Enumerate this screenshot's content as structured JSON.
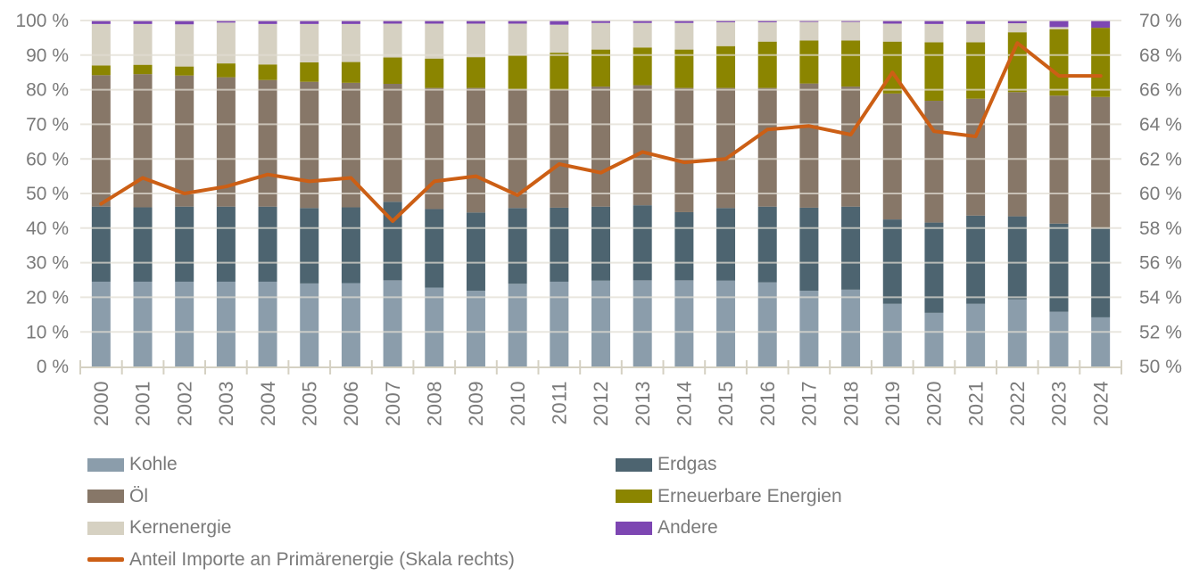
{
  "chart_data": {
    "type": "combo-stacked-bar-line",
    "title": "",
    "stack_unit": "%",
    "grid": true,
    "categories": [
      2000,
      2001,
      2002,
      2003,
      2004,
      2005,
      2006,
      2007,
      2008,
      2009,
      2010,
      2011,
      2012,
      2013,
      2014,
      2015,
      2016,
      2017,
      2018,
      2019,
      2020,
      2021,
      2022,
      2023,
      2024
    ],
    "series": [
      {
        "name": "Kohle",
        "color": "#8b9dab",
        "values": [
          24.5,
          24.5,
          24.5,
          24.5,
          24.5,
          24.0,
          24.1,
          24.9,
          22.8,
          21.9,
          23.9,
          24.5,
          24.8,
          24.9,
          24.9,
          24.8,
          24.3,
          21.9,
          22.2,
          18.1,
          15.5,
          18.1,
          19.4,
          15.8,
          14.2
        ]
      },
      {
        "name": "Erdgas",
        "color": "#4d6470",
        "values": [
          21.7,
          21.5,
          21.7,
          21.7,
          21.7,
          21.8,
          21.9,
          22.7,
          22.7,
          22.6,
          21.9,
          21.4,
          21.4,
          21.7,
          19.7,
          21.0,
          21.9,
          24.0,
          24.0,
          24.4,
          26.1,
          25.5,
          24.0,
          25.5,
          25.7
        ]
      },
      {
        "name": "Öl",
        "color": "#877768",
        "values": [
          38.0,
          38.5,
          37.9,
          37.4,
          36.6,
          36.5,
          36.0,
          34.1,
          35.0,
          36.0,
          34.4,
          34.0,
          34.7,
          34.7,
          35.9,
          34.7,
          34.3,
          35.9,
          34.7,
          36.4,
          35.2,
          33.8,
          35.9,
          37.0,
          38.0
        ]
      },
      {
        "name": "Erneuerbare Energien",
        "color": "#8b8500",
        "values": [
          2.8,
          2.7,
          2.6,
          4.0,
          4.5,
          5.6,
          6.0,
          7.6,
          8.5,
          8.9,
          9.8,
          10.8,
          10.7,
          10.9,
          11.1,
          12.1,
          13.4,
          12.4,
          13.3,
          15.0,
          16.9,
          16.3,
          17.3,
          19.2,
          20.0
        ]
      },
      {
        "name": "Kernenergie",
        "color": "#d6d1c2",
        "values": [
          12.0,
          11.8,
          12.2,
          11.8,
          11.7,
          11.1,
          11.0,
          9.8,
          10.1,
          9.7,
          9.1,
          8.1,
          7.7,
          7.1,
          7.7,
          6.9,
          5.6,
          5.4,
          5.4,
          5.2,
          5.3,
          5.3,
          2.6,
          0.6,
          0.0
        ]
      },
      {
        "name": "Andere",
        "color": "#7d46b2",
        "values": [
          1.0,
          1.0,
          1.1,
          0.6,
          1.0,
          1.0,
          1.0,
          0.9,
          0.9,
          0.9,
          0.9,
          1.2,
          0.7,
          0.7,
          0.7,
          0.5,
          0.5,
          0.4,
          0.4,
          0.9,
          1.0,
          1.0,
          0.8,
          1.9,
          2.1
        ]
      }
    ],
    "line_series": {
      "name": "Anteil Importe an Primärenergie (Skala rechts)",
      "color": "#cc5f15",
      "axis": "right",
      "values": [
        59.4,
        60.9,
        60.0,
        60.4,
        61.1,
        60.7,
        60.9,
        58.4,
        60.7,
        61.0,
        59.9,
        61.7,
        61.2,
        62.4,
        61.8,
        62.0,
        63.7,
        63.9,
        63.4,
        67.0,
        63.6,
        63.3,
        68.7,
        66.8,
        66.8
      ]
    },
    "left_axis": {
      "min": 0,
      "max": 100,
      "step": 10,
      "tick_labels": [
        "0 %",
        "10 %",
        "20 %",
        "30 %",
        "40 %",
        "50 %",
        "60 %",
        "70 %",
        "80 %",
        "90 %",
        "100 %"
      ]
    },
    "right_axis": {
      "min": 50,
      "max": 70,
      "step": 2,
      "tick_labels": [
        "50 %",
        "52 %",
        "54 %",
        "56 %",
        "58 %",
        "60 %",
        "62 %",
        "64 %",
        "66 %",
        "68 %",
        "70 %"
      ]
    }
  },
  "legend": {
    "columns": [
      {
        "items": [
          {
            "name": "kohle",
            "label": "Kohle",
            "color": "#8b9dab",
            "type": "box"
          },
          {
            "name": "oel",
            "label": "Öl",
            "color": "#877768",
            "type": "box"
          },
          {
            "name": "kernenergie",
            "label": "Kernenergie",
            "color": "#d6d1c2",
            "type": "box"
          },
          {
            "name": "anteil-importe-an-primaerenergie",
            "label": "Anteil Importe an Primärenergie (Skala rechts)",
            "color": "#cc5f15",
            "type": "line"
          }
        ]
      },
      {
        "items": [
          {
            "name": "erdgas",
            "label": "Erdgas",
            "color": "#4d6470",
            "type": "box"
          },
          {
            "name": "erneuerbare-energien",
            "label": "Erneuerbare Energien",
            "color": "#8b8500",
            "type": "box"
          },
          {
            "name": "andere",
            "label": "Andere",
            "color": "#7d46b2",
            "type": "box"
          }
        ]
      }
    ]
  },
  "colors": {
    "background": "#ffffff",
    "text": "#7a7a7a",
    "grid": "#e1ddd2",
    "axis": "#d5d1c3"
  }
}
